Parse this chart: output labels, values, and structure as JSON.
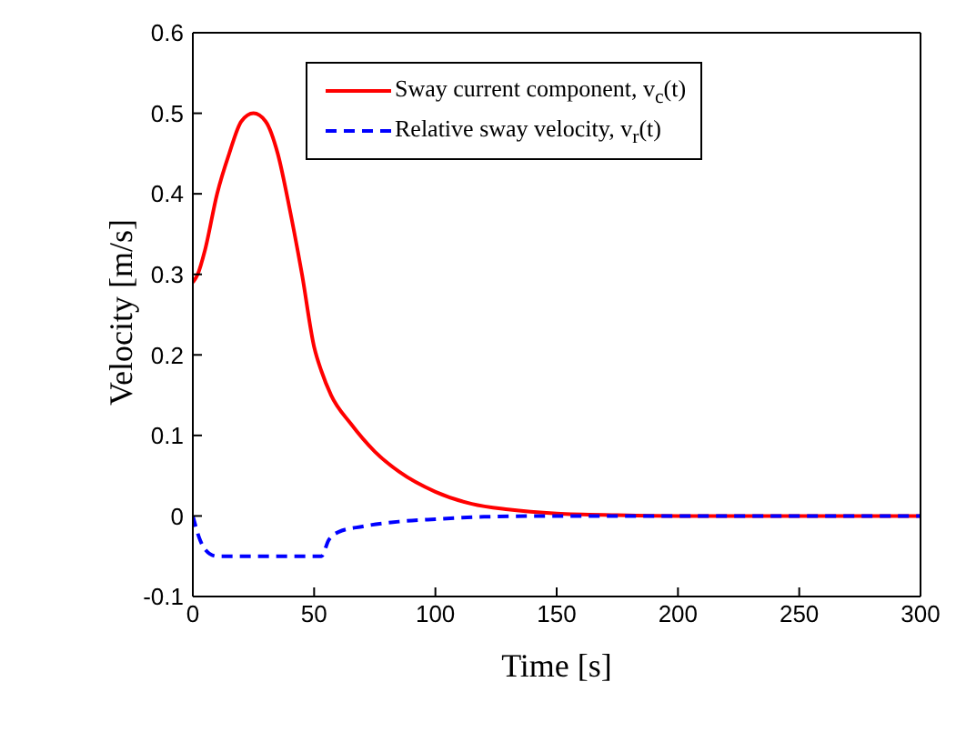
{
  "chart_data": {
    "type": "line",
    "xlabel": "Time [s]",
    "ylabel": "Velocity [m/s]",
    "xlim": [
      0,
      300
    ],
    "xticks": [
      0,
      50,
      100,
      150,
      200,
      250,
      300
    ],
    "ylim": [
      -0.1,
      0.6
    ],
    "yticks": [
      -0.1,
      0,
      0.1,
      0.2,
      0.3,
      0.4,
      0.5,
      0.6
    ],
    "grid": false,
    "legend": "top",
    "marker": "none",
    "series": [
      {
        "name": "Sway current component, v$_{c}$(t)",
        "color": "#ff0000",
        "line_style": "solid",
        "x": [
          0,
          2,
          5,
          10,
          15,
          20,
          25,
          30,
          35,
          40,
          45,
          50,
          53,
          57,
          65,
          75,
          85,
          100,
          115,
          130,
          150,
          175,
          200,
          300
        ],
        "values": [
          0.29,
          0.3,
          0.33,
          0.4,
          0.45,
          0.49,
          0.5,
          0.49,
          0.45,
          0.38,
          0.3,
          0.21,
          0.18,
          0.15,
          0.115,
          0.08,
          0.055,
          0.03,
          0.015,
          0.008,
          0.003,
          0.001,
          0,
          0
        ]
      },
      {
        "name": "Relative sway velocity, v$_{r}$(t)",
        "color": "#0000ff",
        "line_style": "dashed",
        "x": [
          0,
          3,
          7,
          10,
          50,
          53,
          56,
          60,
          70,
          85,
          100,
          120,
          150,
          300
        ],
        "values": [
          0,
          -0.03,
          -0.047,
          -0.05,
          -0.05,
          -0.05,
          -0.03,
          -0.02,
          -0.013,
          -0.007,
          -0.004,
          -0.001,
          0,
          0
        ]
      }
    ]
  }
}
